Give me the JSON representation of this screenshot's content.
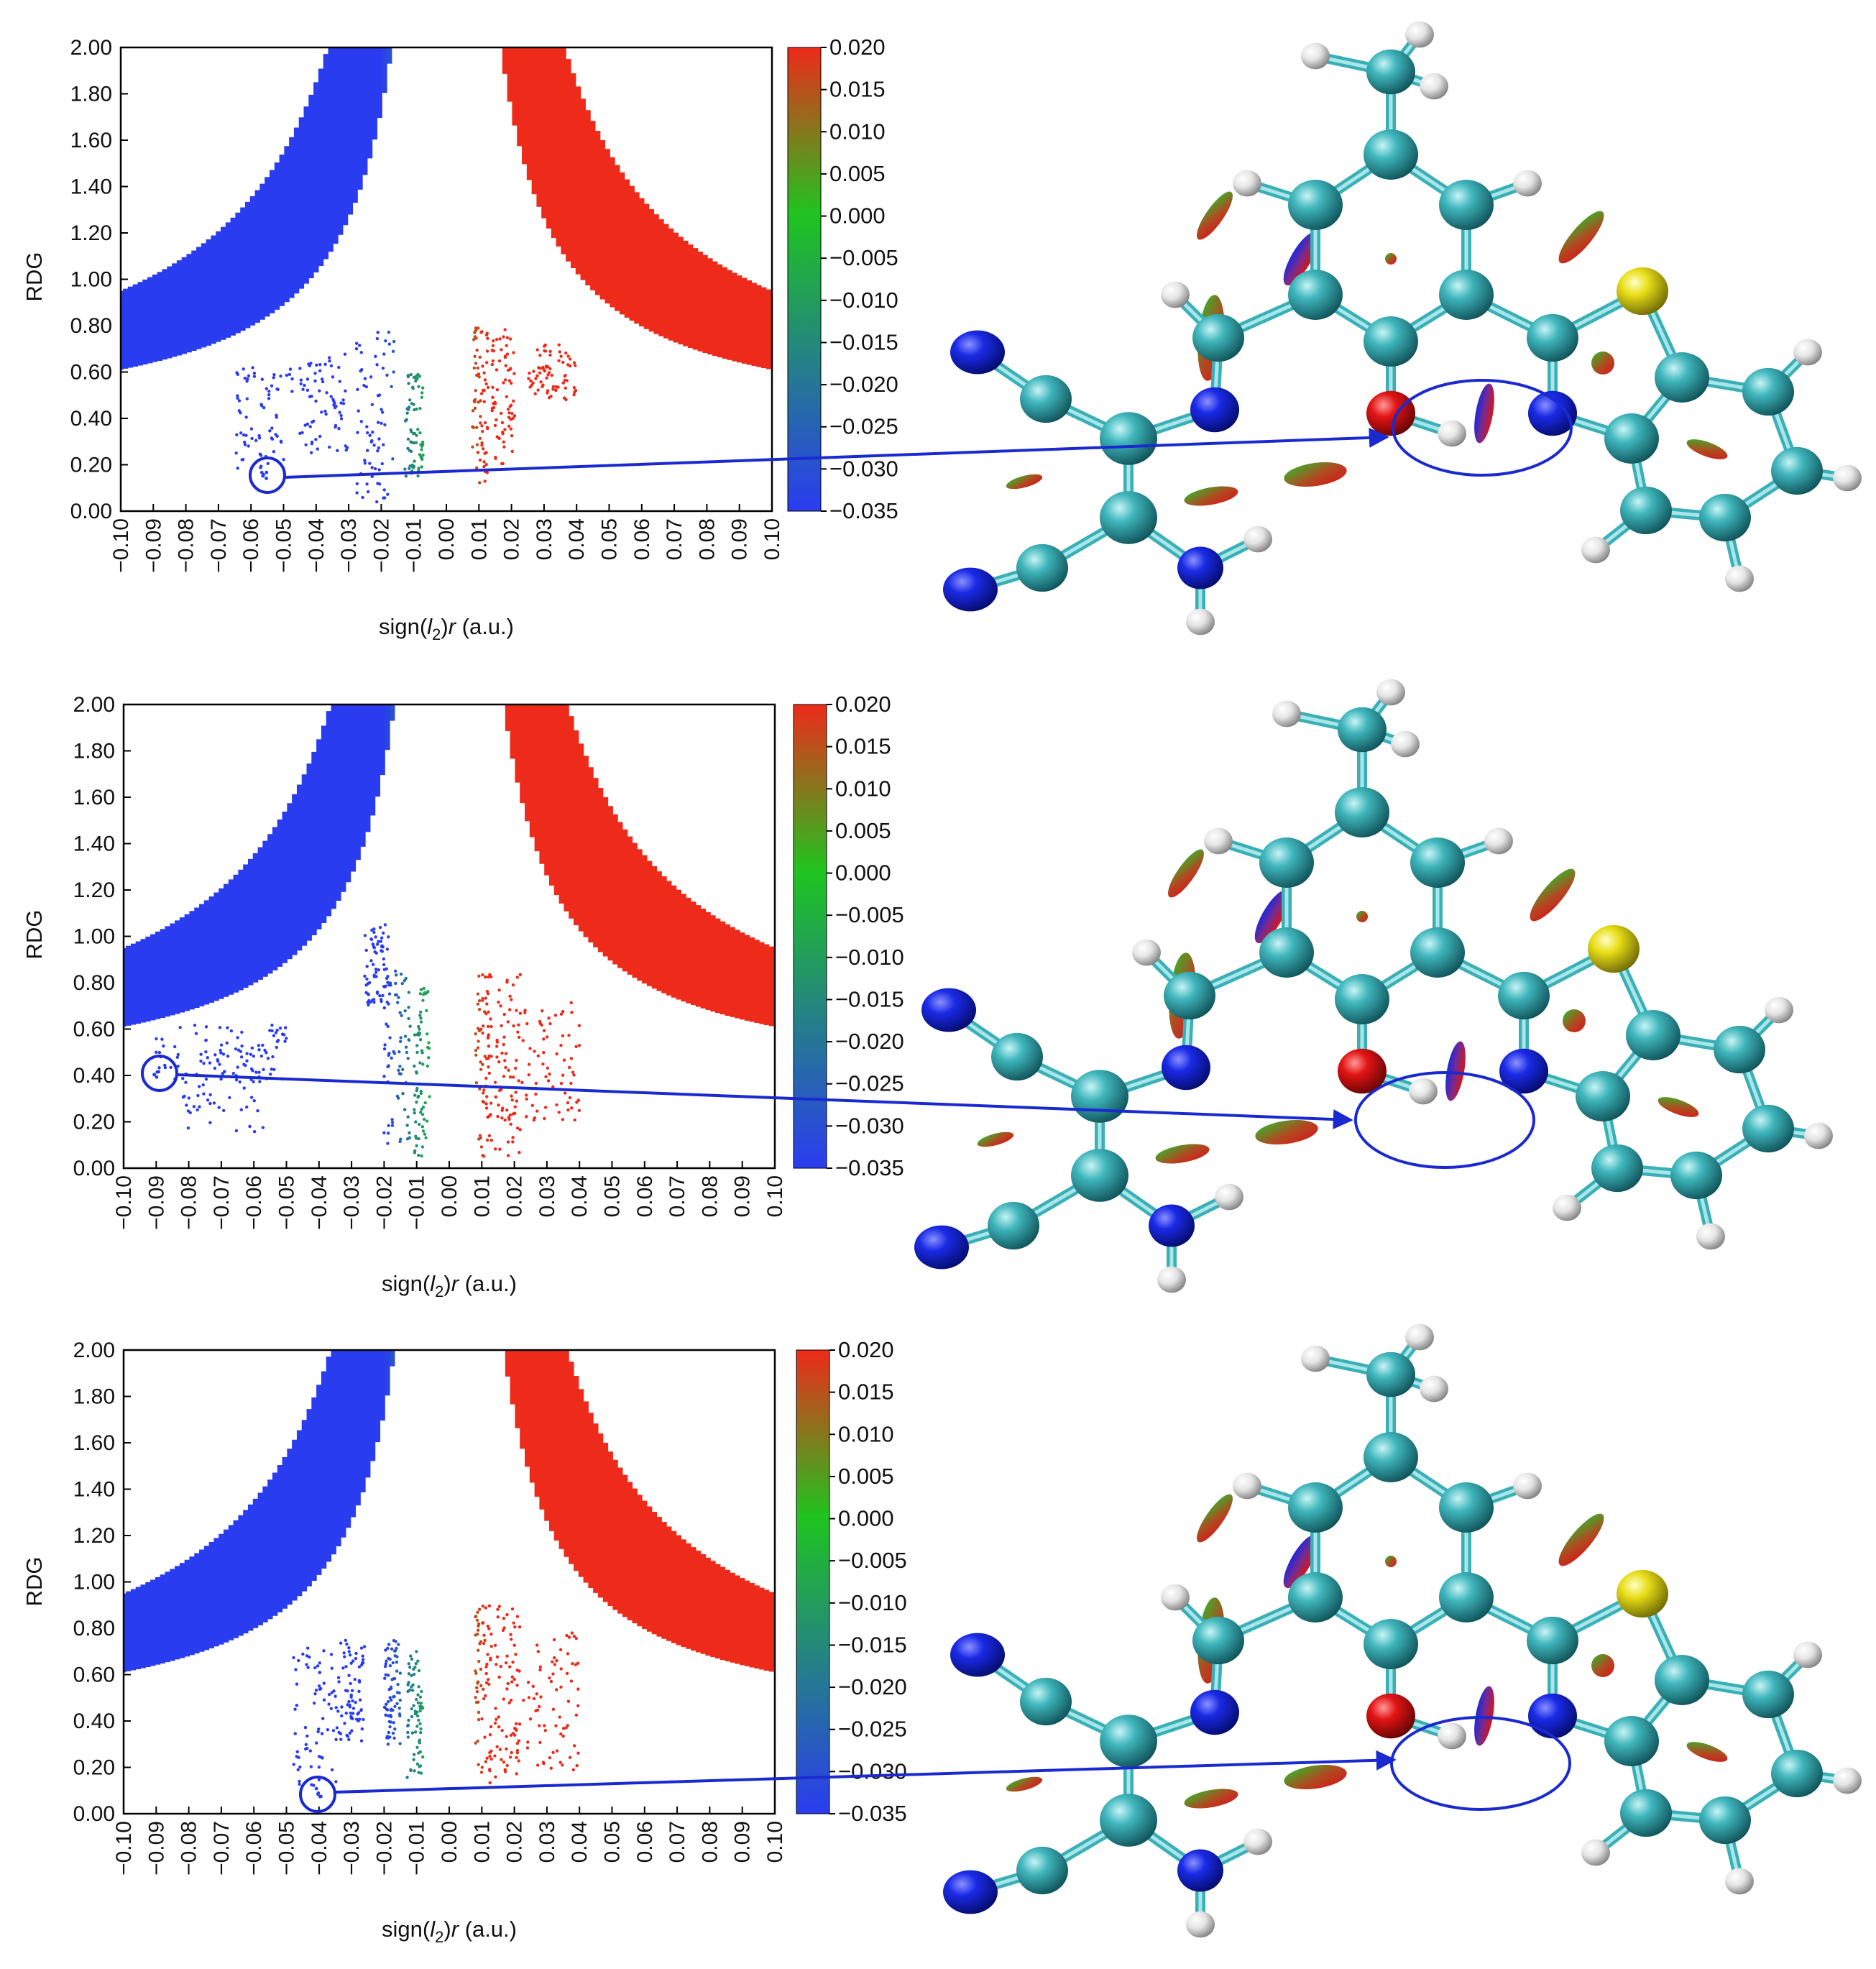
{
  "chart_data": [
    {
      "type": "scatter",
      "panel": "top",
      "xlabel": "sign(l2)r (a.u.)",
      "xlabel_parts": {
        "pre": "sign(",
        "var": "l",
        "sub": "2",
        "post": ")",
        "r": "r",
        "unit": " (a.u.)"
      },
      "ylabel": "RDG",
      "xlim": [
        -0.1,
        0.1
      ],
      "ylim": [
        0.0,
        2.0
      ],
      "x_ticks": [
        "−0.10",
        "−0.09",
        "−0.08",
        "−0.07",
        "−0.06",
        "−0.05",
        "−0.04",
        "−0.03",
        "−0.02",
        "−0.01",
        "0.00",
        "0.01",
        "0.02",
        "0.03",
        "0.04",
        "0.05",
        "0.06",
        "0.07",
        "0.08",
        "0.09",
        "0.10"
      ],
      "y_ticks": [
        "0.00",
        "0.20",
        "0.40",
        "0.60",
        "0.80",
        "1.00",
        "1.20",
        "1.40",
        "1.60",
        "1.80",
        "2.00"
      ],
      "colorbar": {
        "min": -0.035,
        "max": 0.02,
        "colors": [
          "#2a3cf0",
          "#1fc41f",
          "#ee2a1a"
        ],
        "ticks": [
          "0.020",
          "0.015",
          "0.010",
          "0.005",
          "0.000",
          "−0.005",
          "−0.010",
          "−0.015",
          "−0.020",
          "−0.025",
          "−0.030",
          "−0.035"
        ]
      },
      "grid": false,
      "highlight": {
        "x": -0.056,
        "y": 0.15
      },
      "spikes": [
        {
          "x0": -0.065,
          "x1": -0.047,
          "ytop": 0.62,
          "ybot": 0.18
        },
        {
          "x0": -0.045,
          "x1": -0.03,
          "ytop": 0.68,
          "ybot": 0.25
        },
        {
          "x0": -0.028,
          "x1": -0.016,
          "ytop": 0.78,
          "ybot": 0.03
        },
        {
          "x0": -0.013,
          "x1": -0.007,
          "ytop": 0.6,
          "ybot": 0.15
        },
        {
          "x0": 0.008,
          "x1": 0.013,
          "ytop": 0.8,
          "ybot": 0.12
        },
        {
          "x0": 0.014,
          "x1": 0.021,
          "ytop": 0.8,
          "ybot": 0.2
        },
        {
          "x0": 0.025,
          "x1": 0.04,
          "ytop": 0.72,
          "ybot": 0.48
        }
      ]
    },
    {
      "type": "scatter",
      "panel": "middle",
      "xlabel": "sign(l2)r (a.u.)",
      "xlabel_parts": {
        "pre": "sign(",
        "var": "l",
        "sub": "2",
        "post": ")",
        "r": "r",
        "unit": " (a.u.)"
      },
      "ylabel": "RDG",
      "xlim": [
        -0.1,
        0.1
      ],
      "ylim": [
        0.0,
        2.0
      ],
      "x_ticks": [
        "−0.10",
        "−0.09",
        "−0.08",
        "−0.07",
        "−0.06",
        "−0.05",
        "−0.04",
        "−0.03",
        "−0.02",
        "−0.01",
        "0.00",
        "0.01",
        "0.02",
        "0.03",
        "0.04",
        "0.05",
        "0.06",
        "0.07",
        "0.08",
        "0.09",
        "0.10"
      ],
      "y_ticks": [
        "0.00",
        "0.20",
        "0.40",
        "0.60",
        "0.80",
        "1.00",
        "1.20",
        "1.40",
        "1.60",
        "1.80",
        "2.00"
      ],
      "colorbar": {
        "min": -0.035,
        "max": 0.02,
        "colors": [
          "#2a3cf0",
          "#1fc41f",
          "#ee2a1a"
        ],
        "ticks": [
          "0.020",
          "0.015",
          "0.010",
          "0.005",
          "0.000",
          "−0.005",
          "−0.010",
          "−0.015",
          "−0.020",
          "−0.025",
          "−0.030",
          "−0.035"
        ]
      },
      "grid": false,
      "highlight": {
        "x": -0.09,
        "y": 0.4
      },
      "spikes": [
        {
          "x0": -0.09,
          "x1": -0.05,
          "ytop": 0.62,
          "ybot": 0.38
        },
        {
          "x0": -0.082,
          "x1": -0.057,
          "ytop": 0.55,
          "ybot": 0.15
        },
        {
          "x0": -0.026,
          "x1": -0.018,
          "ytop": 1.05,
          "ybot": 0.7
        },
        {
          "x0": -0.02,
          "x1": -0.012,
          "ytop": 0.85,
          "ybot": 0.1
        },
        {
          "x0": -0.011,
          "x1": -0.006,
          "ytop": 0.8,
          "ybot": 0.05
        },
        {
          "x0": 0.008,
          "x1": 0.013,
          "ytop": 0.85,
          "ybot": 0.05
        },
        {
          "x0": 0.014,
          "x1": 0.022,
          "ytop": 0.85,
          "ybot": 0.05
        },
        {
          "x0": 0.022,
          "x1": 0.04,
          "ytop": 0.75,
          "ybot": 0.2
        }
      ]
    },
    {
      "type": "scatter",
      "panel": "bottom",
      "xlabel": "sign(l2)r (a.u.)",
      "xlabel_parts": {
        "pre": "sign(",
        "var": "l",
        "sub": "2",
        "post": ")",
        "r": "r",
        "unit": " (a.u.)"
      },
      "ylabel": "RDG",
      "xlim": [
        -0.1,
        0.1
      ],
      "ylim": [
        0.0,
        2.0
      ],
      "x_ticks": [
        "−0.10",
        "−0.09",
        "−0.08",
        "−0.07",
        "−0.06",
        "−0.05",
        "−0.04",
        "−0.03",
        "−0.02",
        "−0.01",
        "0.00",
        "0.01",
        "0.02",
        "0.03",
        "0.04",
        "0.05",
        "0.06",
        "0.07",
        "0.08",
        "0.09",
        "0.10"
      ],
      "y_ticks": [
        "0.00",
        "0.20",
        "0.40",
        "0.60",
        "0.80",
        "1.00",
        "1.20",
        "1.40",
        "1.60",
        "1.80",
        "2.00"
      ],
      "colorbar": {
        "min": -0.035,
        "max": 0.02,
        "colors": [
          "#2a3cf0",
          "#1fc41f",
          "#ee2a1a"
        ],
        "ticks": [
          "0.020",
          "0.015",
          "0.010",
          "0.005",
          "0.000",
          "−0.005",
          "−0.010",
          "−0.015",
          "−0.020",
          "−0.025",
          "−0.030",
          "−0.035"
        ]
      },
      "grid": false,
      "highlight": {
        "x": -0.04,
        "y": 0.09
      },
      "spikes": [
        {
          "x0": -0.048,
          "x1": -0.034,
          "ytop": 0.72,
          "ybot": 0.1
        },
        {
          "x0": -0.034,
          "x1": -0.026,
          "ytop": 0.75,
          "ybot": 0.3
        },
        {
          "x0": -0.02,
          "x1": -0.015,
          "ytop": 0.75,
          "ybot": 0.3
        },
        {
          "x0": -0.013,
          "x1": -0.008,
          "ytop": 0.7,
          "ybot": 0.15
        },
        {
          "x0": 0.008,
          "x1": 0.013,
          "ytop": 0.9,
          "ybot": 0.12
        },
        {
          "x0": 0.014,
          "x1": 0.022,
          "ytop": 0.9,
          "ybot": 0.15
        },
        {
          "x0": 0.022,
          "x1": 0.04,
          "ytop": 0.78,
          "ybot": 0.18
        }
      ]
    }
  ],
  "molecules": [
    {
      "panel": "top",
      "region_highlight": "O–H···N",
      "proton_on": "O"
    },
    {
      "panel": "middle",
      "region_highlight": "O–H···N",
      "proton_on": "O"
    },
    {
      "panel": "bottom",
      "region_highlight": "O···H–N",
      "proton_on": "N"
    }
  ],
  "colors": {
    "carbon": "#2a9aa0",
    "nitrogen": "#1222d8",
    "oxygen": "#e01010",
    "sulfur": "#e0d812",
    "hydrogen": "#e6e6e6",
    "annotation": "#1a2ad0"
  },
  "icons": [
    "ellipse-highlight",
    "arrow-annotation"
  ]
}
